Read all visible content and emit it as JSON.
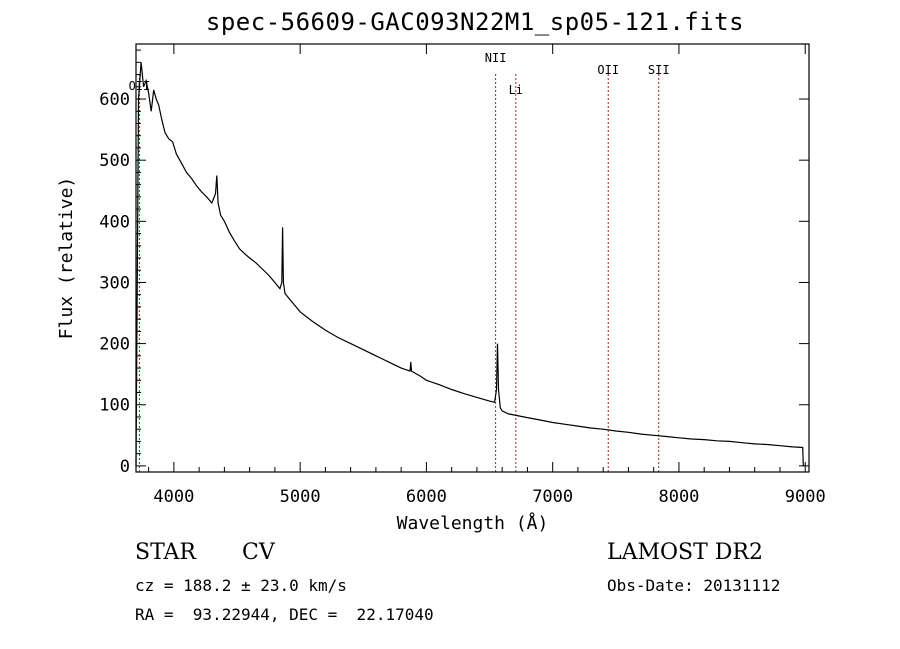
{
  "title": "spec-56609-GAC093N22M1_sp05-121.fits",
  "info": {
    "class": "STAR",
    "subclass": "CV",
    "survey": "LAMOST DR2",
    "cz": "cz = 188.2 ± 23.0 km/s",
    "obs_date": "Obs-Date: 20131112",
    "coords": "RA =  93.22944, DEC =  22.17040"
  },
  "colors": {
    "spectrum": "#000000",
    "line_marker": "#b22222",
    "axis": "#000000"
  },
  "chart_data": {
    "type": "line",
    "xlabel": "Wavelength (Å)",
    "ylabel": "Flux (relative)",
    "xlim": [
      3700,
      9030
    ],
    "ylim": [
      -10,
      690
    ],
    "xticks": [
      4000,
      5000,
      6000,
      7000,
      8000,
      9000
    ],
    "yticks": [
      0,
      100,
      200,
      300,
      400,
      500,
      600
    ],
    "grid": false,
    "line_markers": [
      {
        "label": "OII",
        "x": 3727
      },
      {
        "label": "NII",
        "x": 6548
      },
      {
        "label": "Li",
        "x": 6708
      },
      {
        "label": "OII",
        "x": 7440
      },
      {
        "label": "SII",
        "x": 7840
      }
    ],
    "series": [
      {
        "x": [
          3700,
          3720,
          3740,
          3760,
          3780,
          3800,
          3820,
          3840,
          3860,
          3880,
          3900,
          3930,
          3960,
          3990,
          4020,
          4060,
          4100,
          4140,
          4180,
          4220,
          4260,
          4300,
          4330,
          4340,
          4350,
          4370,
          4400,
          4440,
          4480,
          4520,
          4560,
          4600,
          4650,
          4700,
          4750,
          4800,
          4840,
          4855,
          4861,
          4867,
          4880,
          4920,
          4960,
          5000,
          5100,
          5200,
          5300,
          5400,
          5500,
          5600,
          5700,
          5800,
          5870,
          5876,
          5882,
          5950,
          6000,
          6100,
          6200,
          6300,
          6400,
          6500,
          6540,
          6555,
          6563,
          6571,
          6585,
          6600,
          6650,
          6700,
          6800,
          6900,
          7000,
          7100,
          7200,
          7300,
          7400,
          7500,
          7600,
          7700,
          7800,
          7900,
          8000,
          8100,
          8200,
          8300,
          8400,
          8500,
          8600,
          8700,
          8800,
          8900,
          8980,
          8985
        ],
        "values": [
          0,
          600,
          660,
          620,
          630,
          610,
          580,
          615,
          600,
          590,
          570,
          545,
          535,
          530,
          510,
          495,
          480,
          470,
          458,
          448,
          440,
          430,
          445,
          475,
          430,
          410,
          400,
          382,
          368,
          355,
          347,
          340,
          332,
          322,
          312,
          300,
          290,
          300,
          390,
          300,
          282,
          272,
          262,
          252,
          236,
          222,
          210,
          200,
          190,
          180,
          170,
          160,
          155,
          170,
          155,
          147,
          140,
          133,
          125,
          118,
          112,
          106,
          104,
          125,
          200,
          125,
          95,
          90,
          85,
          83,
          79,
          75,
          71,
          68,
          65,
          62,
          60,
          57,
          55,
          52,
          50,
          48,
          46,
          44,
          43,
          41,
          40,
          38,
          36,
          35,
          33,
          31,
          30,
          0
        ]
      }
    ]
  }
}
